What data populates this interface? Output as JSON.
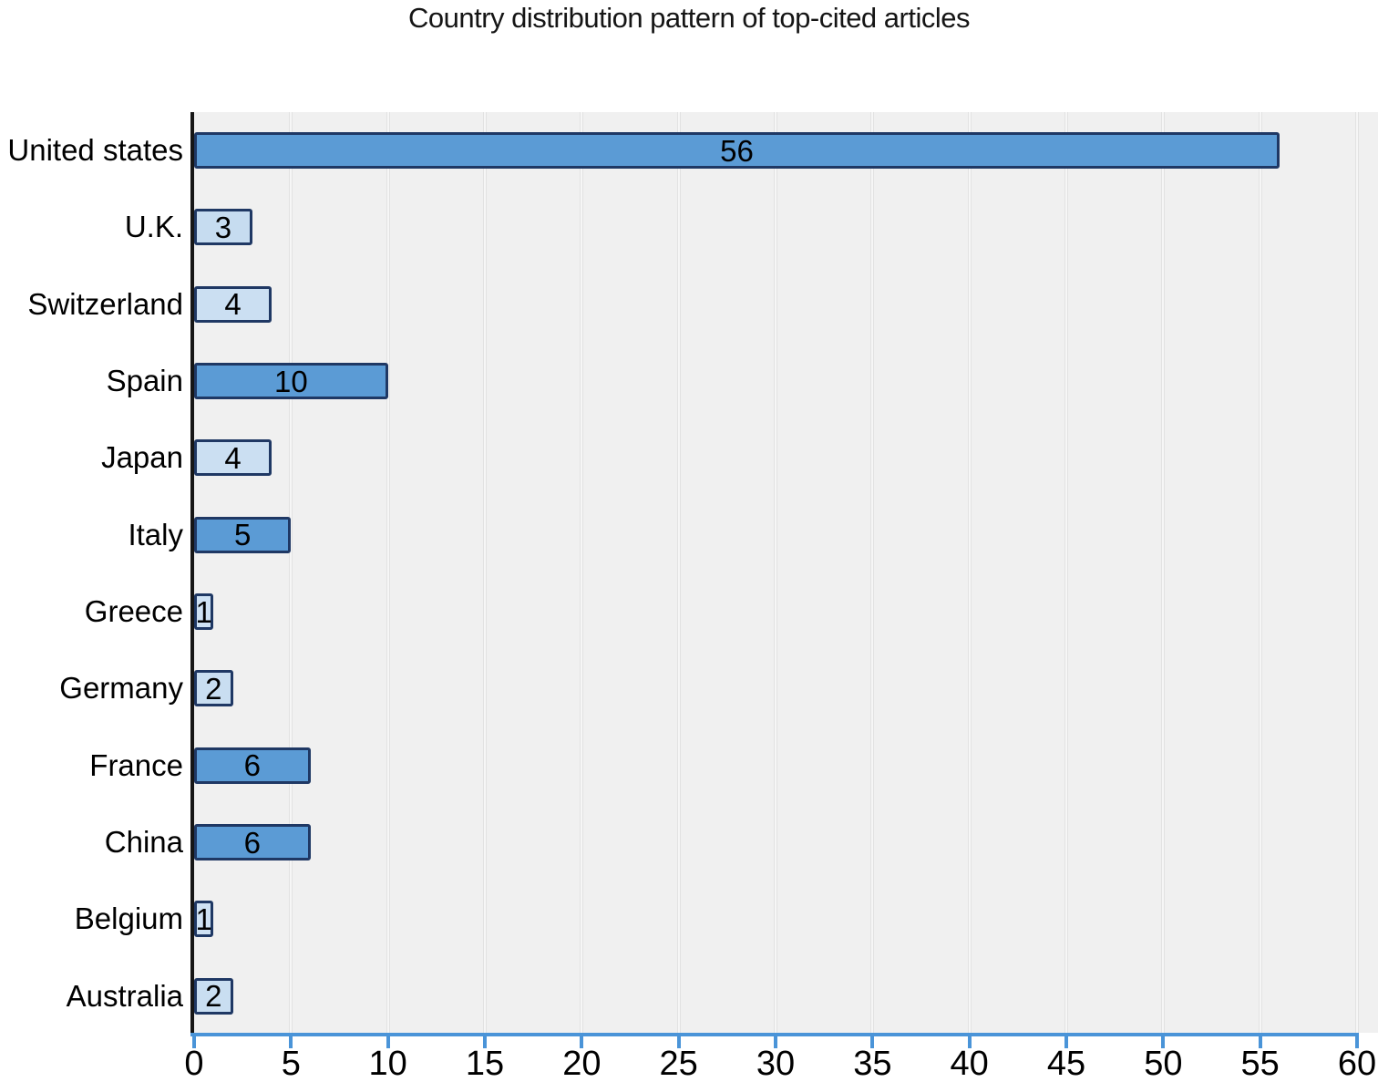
{
  "chart_data": {
    "type": "bar",
    "orientation": "horizontal",
    "title": "Country distribution pattern of top-cited articles",
    "categories": [
      "United states",
      "U.K.",
      "Switzerland",
      "Spain",
      "Japan",
      "Italy",
      "Greece",
      "Germany",
      "France",
      "China",
      "Belgium",
      "Australia"
    ],
    "values": [
      56,
      3,
      4,
      10,
      4,
      5,
      1,
      2,
      6,
      6,
      1,
      2
    ],
    "x_ticks": [
      0,
      5,
      10,
      15,
      20,
      25,
      30,
      35,
      40,
      45,
      50,
      55,
      60
    ],
    "xlim": [
      0,
      60
    ],
    "xlabel": "",
    "ylabel": "",
    "legend": "none",
    "grid": "vertical gridlines every 5 units",
    "value_labels": "centered inside bars",
    "colors": {
      "bar_fill_medium": "#5b9bd5",
      "bar_fill_light": "#c9def2",
      "bar_border": "#1f3864",
      "x_axis_line": "#4a94d8",
      "y_axis_line": "#161616",
      "plot_background": "#f0f0f0",
      "gridline": "#ffffff",
      "text": "#000000"
    },
    "bar_fill_colors": [
      "#5b9bd5",
      "#c6dcf0",
      "#cbdff2",
      "#5b9bd5",
      "#cbdff2",
      "#5b9bd5",
      "#cfe2f4",
      "#c9def1",
      "#5b9bd5",
      "#5b9bd5",
      "#cfe2f4",
      "#c9def1"
    ]
  }
}
